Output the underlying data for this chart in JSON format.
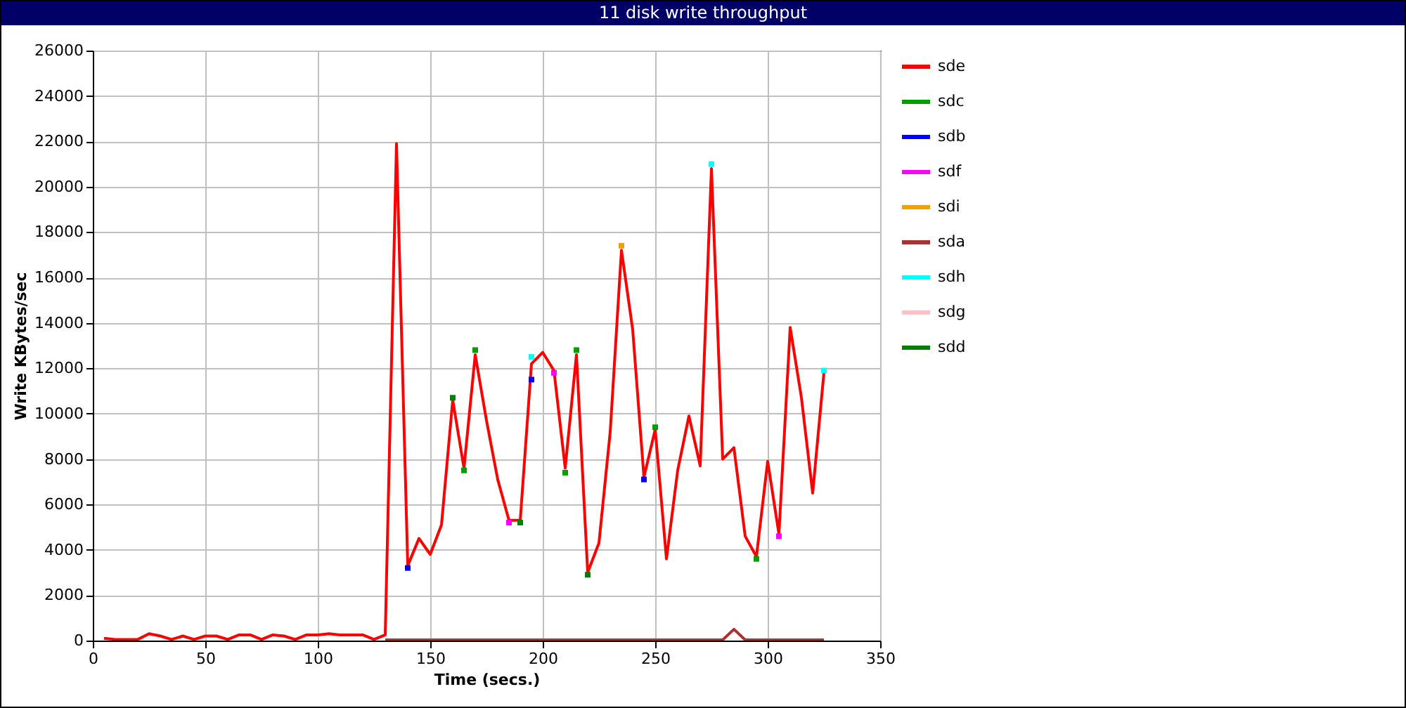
{
  "chart_data": {
    "type": "line",
    "title": "11 disk write throughput",
    "xlabel": "Time (secs.)",
    "ylabel": "Write KBytes/sec",
    "xlim": [
      0,
      350
    ],
    "xticks": [
      0,
      50,
      100,
      150,
      200,
      250,
      300,
      350
    ],
    "ylim": [
      0,
      26000
    ],
    "yticks": [
      0,
      2000,
      4000,
      6000,
      8000,
      10000,
      12000,
      14000,
      16000,
      18000,
      20000,
      22000,
      24000,
      26000
    ],
    "grid": true,
    "legend": "right",
    "line_style": "solid",
    "x": [
      5,
      10,
      15,
      20,
      25,
      30,
      35,
      40,
      45,
      50,
      55,
      60,
      65,
      70,
      75,
      80,
      85,
      90,
      95,
      100,
      105,
      110,
      115,
      120,
      125,
      130,
      135,
      140,
      145,
      150,
      155,
      160,
      165,
      170,
      175,
      180,
      185,
      190,
      195,
      200,
      205,
      210,
      215,
      220,
      225,
      230,
      235,
      240,
      245,
      250,
      255,
      260,
      265,
      270,
      275,
      280,
      285,
      290,
      295,
      300,
      305,
      310,
      315,
      320,
      325
    ],
    "series": [
      {
        "name": "sde",
        "color": "#ff0000",
        "values": [
          100,
          50,
          50,
          50,
          300,
          200,
          50,
          200,
          50,
          200,
          200,
          50,
          250,
          250,
          50,
          250,
          200,
          50,
          250,
          250,
          300,
          250,
          250,
          250,
          50,
          250,
          21900,
          3300,
          4500,
          3800,
          5100,
          10600,
          7600,
          12600,
          9700,
          7100,
          5300,
          5300,
          12200,
          12700,
          11900,
          7600,
          12600,
          3000,
          4300,
          9200,
          17200,
          13700,
          7200,
          9300,
          3600,
          7500,
          9900,
          7700,
          20800,
          8000,
          8500,
          4600,
          3700,
          7900,
          4700,
          13800,
          10700,
          6500,
          11800
        ]
      },
      {
        "name": "sdc",
        "color": "#00a000",
        "type": "scatter",
        "marker": "square",
        "x": [
          165,
          170,
          210,
          215,
          250,
          295
        ],
        "values": [
          7500,
          12800,
          7400,
          12800,
          9400,
          3600
        ]
      },
      {
        "name": "sdb",
        "color": "#0000ff",
        "type": "scatter",
        "marker": "square",
        "x": [
          140,
          195,
          245
        ],
        "values": [
          3200,
          11500,
          7100
        ]
      },
      {
        "name": "sdf",
        "color": "#ff00ff",
        "type": "scatter",
        "marker": "square",
        "x": [
          185,
          205,
          305
        ],
        "values": [
          5200,
          11800,
          4600
        ]
      },
      {
        "name": "sdi",
        "color": "#f0a000",
        "type": "scatter",
        "marker": "square",
        "x": [
          235
        ],
        "values": [
          17400
        ]
      },
      {
        "name": "sda",
        "color": "#b03030",
        "x": [
          130,
          135,
          140,
          145,
          150,
          155,
          160,
          165,
          170,
          175,
          180,
          185,
          190,
          195,
          200,
          205,
          210,
          215,
          220,
          225,
          230,
          235,
          240,
          245,
          250,
          255,
          260,
          265,
          270,
          275,
          280,
          285,
          290,
          295,
          300,
          305,
          310,
          315,
          320,
          325
        ],
        "values": [
          30,
          30,
          30,
          30,
          30,
          30,
          30,
          30,
          30,
          30,
          30,
          30,
          30,
          30,
          30,
          30,
          30,
          30,
          30,
          30,
          30,
          30,
          30,
          30,
          30,
          30,
          30,
          30,
          30,
          30,
          30,
          500,
          30,
          30,
          30,
          30,
          30,
          30,
          30,
          30
        ]
      },
      {
        "name": "sdh",
        "color": "#00ffff",
        "type": "scatter",
        "marker": "square",
        "x": [
          195,
          275,
          325
        ],
        "values": [
          12500,
          21000,
          11900
        ]
      },
      {
        "name": "sdg",
        "color": "#ffc0cb",
        "type": "scatter",
        "marker": "square",
        "values": [
          null,
          null,
          null,
          null,
          null,
          null,
          null,
          null,
          null,
          null,
          null,
          null,
          null,
          null,
          null,
          null,
          null,
          null,
          null,
          null,
          null,
          null,
          null,
          null,
          null,
          null,
          null,
          null,
          null,
          null,
          null,
          null,
          null,
          null,
          null,
          null,
          null,
          null,
          null,
          null,
          null,
          null,
          null,
          null,
          null,
          null,
          null,
          null,
          null,
          null,
          null,
          null,
          null,
          null,
          null,
          null,
          null,
          null,
          null,
          null,
          null,
          null,
          null,
          null,
          null
        ]
      },
      {
        "name": "sdd",
        "color": "#008000",
        "type": "scatter",
        "marker": "square",
        "x": [
          160,
          190,
          220
        ],
        "values": [
          10700,
          5200,
          2900
        ]
      }
    ]
  }
}
